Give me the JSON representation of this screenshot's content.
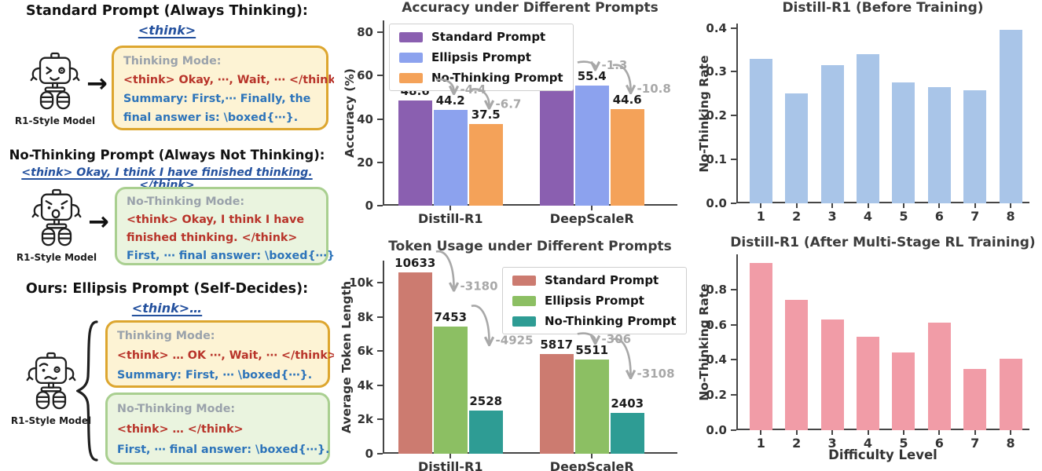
{
  "left": {
    "sections": [
      {
        "title": "Standard Prompt (Always Thinking):",
        "subtitle": "<think>",
        "model_label": "R1-Style Model",
        "arrow": "→",
        "boxes": [
          {
            "mode": "Thinking Mode:",
            "lines": [
              {
                "text": "<think> Okay, ⋯, Wait, ⋯ </think>"
              },
              {
                "text": "Summary: First,⋯  Finally, the"
              },
              {
                "text": "final answer is: \\boxed{⋯}."
              }
            ]
          }
        ]
      },
      {
        "title": "No-Thinking Prompt (Always Not Thinking):",
        "subtitle": "<think> Okay, I think I have finished thinking. </think>",
        "model_label": "R1-Style Model",
        "arrow": "→",
        "boxes": [
          {
            "mode": "No-Thinking Mode:",
            "lines": [
              {
                "text": "<think> Okay, I think I have"
              },
              {
                "text": "finished thinking. </think>"
              },
              {
                "text": "First, ⋯ final answer: \\boxed{⋯}."
              }
            ]
          }
        ]
      },
      {
        "title": "Ours: Ellipsis Prompt (Self-Decides):",
        "subtitle": "<think>…",
        "model_label": "R1-Style Model",
        "boxes": [
          {
            "mode": "Thinking Mode:",
            "lines": [
              {
                "text": "<think> … OK ⋯, Wait, ⋯ </think>"
              },
              {
                "text": "Summary: First, ⋯ \\boxed{⋯}."
              }
            ]
          },
          {
            "mode": "No-Thinking Mode:",
            "lines": [
              {
                "text": "<think> … </think>"
              },
              {
                "text": "First, ⋯ final answer: \\boxed{⋯}."
              }
            ]
          }
        ]
      }
    ]
  },
  "chart_data": [
    {
      "id": "accuracy",
      "type": "bar",
      "title": "Accuracy under Different Prompts",
      "ylabel": "Accuracy (%)",
      "categories": [
        "Distill-R1",
        "DeepScaleR"
      ],
      "series": [
        {
          "name": "Standard Prompt",
          "color": "#8a5fb0",
          "values": [
            48.6,
            56.7
          ]
        },
        {
          "name": "Ellipsis Prompt",
          "color": "#8ca2ee",
          "values": [
            44.2,
            55.4
          ]
        },
        {
          "name": "No-Thinking Prompt",
          "color": "#f4a259",
          "values": [
            37.5,
            44.6
          ]
        }
      ],
      "ylim": [
        0,
        85.5
      ],
      "yticks": [
        {
          "v": 0,
          "label": "0"
        },
        {
          "v": 20,
          "label": "20"
        },
        {
          "v": 40,
          "label": "40"
        },
        {
          "v": 60,
          "label": "60"
        },
        {
          "v": 80,
          "label": "80"
        }
      ],
      "legend_position": "top-left",
      "grid": false,
      "show_values": true,
      "value_decimals": 1,
      "annotations": [
        {
          "text": "-4.4",
          "group": 0,
          "from": 0,
          "to": 1
        },
        {
          "text": "-6.7",
          "group": 0,
          "from": 1,
          "to": 2
        },
        {
          "text": "-1.3",
          "group": 1,
          "from": 0,
          "to": 1
        },
        {
          "text": "-10.8",
          "group": 1,
          "from": 1,
          "to": 2
        }
      ]
    },
    {
      "id": "tokens",
      "type": "bar",
      "title": "Token Usage under Different Prompts",
      "ylabel": "Average Token Length",
      "categories": [
        "Distill-R1",
        "DeepScaleR"
      ],
      "series": [
        {
          "name": "Standard Prompt",
          "color": "#cc7b70",
          "values": [
            10633,
            5817
          ]
        },
        {
          "name": "Ellipsis Prompt",
          "color": "#8cbf63",
          "values": [
            7453,
            5511
          ]
        },
        {
          "name": "No-Thinking Prompt",
          "color": "#2e9c94",
          "values": [
            2528,
            2403
          ]
        }
      ],
      "ylim": [
        0,
        11300
      ],
      "yticks": [
        {
          "v": 0,
          "label": "0"
        },
        {
          "v": 2000,
          "label": "2k"
        },
        {
          "v": 4000,
          "label": "4k"
        },
        {
          "v": 6000,
          "label": "6k"
        },
        {
          "v": 8000,
          "label": "8k"
        },
        {
          "v": 10000,
          "label": "10k"
        }
      ],
      "legend_position": "top-right",
      "grid": false,
      "show_values": true,
      "value_decimals": 0,
      "annotations": [
        {
          "text": "-3180",
          "group": 0,
          "from": 0,
          "to": 1
        },
        {
          "text": "-4925",
          "group": 0,
          "from": 1,
          "to": 2
        },
        {
          "text": "-306",
          "group": 1,
          "from": 0,
          "to": 1
        },
        {
          "text": "-3108",
          "group": 1,
          "from": 1,
          "to": 2
        }
      ]
    },
    {
      "id": "before",
      "type": "bar",
      "title": "Distill-R1 (Before Training)",
      "ylabel": "No-Thinking Rate",
      "categories": [
        "1",
        "2",
        "3",
        "4",
        "5",
        "6",
        "7",
        "8"
      ],
      "series": [
        {
          "name": "No-Thinking Rate",
          "color": "#a9c5e8",
          "values": [
            0.33,
            0.25,
            0.315,
            0.34,
            0.275,
            0.265,
            0.258,
            0.395
          ]
        }
      ],
      "ylim": [
        0,
        0.41
      ],
      "yticks": [
        {
          "v": 0,
          "label": "0.0"
        },
        {
          "v": 0.1,
          "label": "0.1"
        },
        {
          "v": 0.2,
          "label": "0.2"
        },
        {
          "v": 0.3,
          "label": "0.3"
        },
        {
          "v": 0.4,
          "label": "0.4"
        }
      ],
      "grid": false,
      "show_values": false
    },
    {
      "id": "after",
      "type": "bar",
      "title": "Distill-R1 (After Multi-Stage RL Training)",
      "ylabel": "No-Thinking Rate",
      "xlabel": "Difficulty Level",
      "categories": [
        "1",
        "2",
        "3",
        "4",
        "5",
        "6",
        "7",
        "8"
      ],
      "series": [
        {
          "name": "No-Thinking Rate",
          "color": "#f19ca7",
          "values": [
            0.95,
            0.74,
            0.63,
            0.53,
            0.44,
            0.61,
            0.35,
            0.405
          ]
        }
      ],
      "ylim": [
        0,
        1.0
      ],
      "yticks": [
        {
          "v": 0,
          "label": "0.0"
        },
        {
          "v": 0.2,
          "label": "0.2"
        },
        {
          "v": 0.4,
          "label": "0.4"
        },
        {
          "v": 0.6,
          "label": "0.6"
        },
        {
          "v": 0.8,
          "label": "0.8"
        }
      ],
      "grid": false,
      "show_values": false
    }
  ]
}
